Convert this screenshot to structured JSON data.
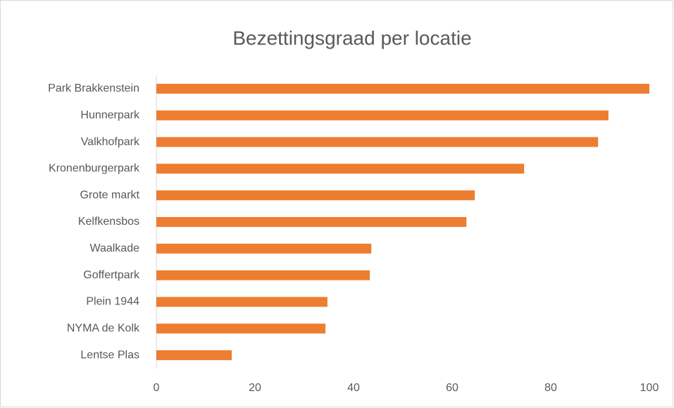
{
  "chart_data": {
    "type": "bar",
    "orientation": "horizontal",
    "title": "Bezettingsgraad per locatie",
    "categories": [
      "Park Brakkenstein",
      "Hunnerpark",
      "Valkhofpark",
      "Kronenburgerpark",
      "Grote markt",
      "Kelfkensbos",
      "Waalkade",
      "Goffertpark",
      "Plein 1944",
      "NYMA de Kolk",
      "Lentse Plas"
    ],
    "values": [
      100,
      91.7,
      89.6,
      74.6,
      64.6,
      62.9,
      43.6,
      43.3,
      34.7,
      34.3,
      15.3
    ],
    "color": "#ed7d31",
    "xlim": [
      0,
      100
    ],
    "xticks": [
      0,
      20,
      40,
      60,
      80,
      100
    ],
    "grid": false
  }
}
